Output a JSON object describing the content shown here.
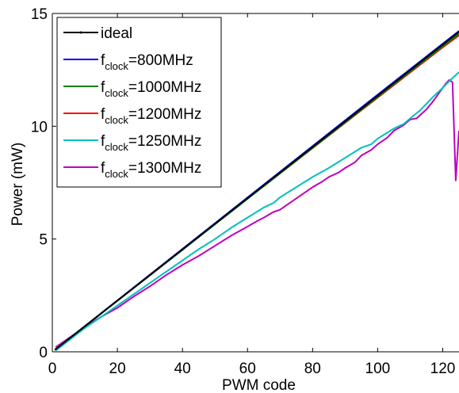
{
  "chart_data": {
    "type": "line",
    "xlabel": "PWM code",
    "ylabel": "Power (mW)",
    "xlim": [
      0,
      125
    ],
    "ylim": [
      0,
      15
    ],
    "xticks": [
      0,
      20,
      40,
      60,
      80,
      100,
      120
    ],
    "yticks": [
      0,
      5,
      10,
      15
    ],
    "grid": false,
    "legend_position": "top-left",
    "series": [
      {
        "name": "ideal",
        "legend_base": "ideal",
        "legend_sub": "",
        "legend_suffix": "",
        "color": "#000000",
        "markers": true,
        "x": [
          1,
          20,
          40,
          60,
          80,
          100,
          120,
          125
        ],
        "y": [
          0.11,
          2.27,
          4.54,
          6.81,
          9.08,
          11.35,
          13.62,
          14.19
        ]
      },
      {
        "name": "fclock=800MHz",
        "legend_base": "f",
        "legend_sub": "clock",
        "legend_suffix": "=800MHz",
        "color": "#0000ff",
        "markers": false,
        "x": [
          1,
          20,
          40,
          60,
          80,
          100,
          120,
          125
        ],
        "y": [
          0.11,
          2.28,
          4.56,
          6.84,
          9.12,
          11.4,
          13.66,
          14.22
        ]
      },
      {
        "name": "fclock=1000MHz",
        "legend_base": "f",
        "legend_sub": "clock",
        "legend_suffix": "=1000MHz",
        "color": "#008000",
        "markers": false,
        "x": [
          1,
          20,
          40,
          60,
          80,
          100,
          120,
          125
        ],
        "y": [
          0.11,
          2.26,
          4.52,
          6.78,
          9.04,
          11.3,
          13.55,
          14.1
        ]
      },
      {
        "name": "fclock=1200MHz",
        "legend_base": "f",
        "legend_sub": "clock",
        "legend_suffix": "=1200MHz",
        "color": "#ff0000",
        "markers": false,
        "x": [
          1,
          20,
          40,
          60,
          80,
          100,
          120,
          125
        ],
        "y": [
          0.11,
          2.27,
          4.53,
          6.79,
          9.03,
          11.27,
          13.5,
          14.03
        ]
      },
      {
        "name": "fclock=1250MHz",
        "legend_base": "f",
        "legend_sub": "clock",
        "legend_suffix": "=1250MHz",
        "color": "#00bfbf",
        "markers": false,
        "x": [
          1,
          5,
          10,
          15,
          20,
          25,
          30,
          35,
          40,
          45,
          50,
          55,
          60,
          65,
          68,
          70,
          75,
          80,
          85,
          90,
          95,
          98,
          100,
          105,
          108,
          110,
          113,
          115,
          117,
          120,
          122,
          125
        ],
        "y": [
          0.05,
          0.5,
          1.05,
          1.55,
          2.05,
          2.55,
          3.05,
          3.55,
          4.05,
          4.55,
          5.0,
          5.5,
          5.95,
          6.4,
          6.6,
          6.85,
          7.3,
          7.75,
          8.15,
          8.6,
          9.05,
          9.2,
          9.45,
          9.9,
          10.1,
          10.35,
          10.7,
          11.0,
          11.3,
          11.7,
          12.0,
          12.4
        ]
      },
      {
        "name": "fclock=1300MHz",
        "legend_base": "f",
        "legend_sub": "clock",
        "legend_suffix": "=1300MHz",
        "color": "#bf00bf",
        "markers": false,
        "x": [
          1,
          5,
          10,
          15,
          20,
          25,
          30,
          35,
          40,
          45,
          50,
          55,
          60,
          63,
          65,
          68,
          70,
          73,
          75,
          78,
          80,
          83,
          85,
          88,
          90,
          93,
          95,
          98,
          100,
          103,
          105,
          108,
          110,
          112,
          115,
          117,
          119,
          121,
          122,
          123,
          124,
          125
        ],
        "y": [
          0.2,
          0.6,
          1.1,
          1.55,
          1.95,
          2.45,
          2.9,
          3.4,
          3.85,
          4.25,
          4.7,
          5.15,
          5.55,
          5.8,
          5.95,
          6.2,
          6.3,
          6.6,
          6.8,
          7.1,
          7.3,
          7.55,
          7.75,
          7.95,
          8.15,
          8.4,
          8.7,
          8.95,
          9.2,
          9.5,
          9.8,
          10.05,
          10.3,
          10.35,
          10.75,
          11.1,
          11.5,
          11.9,
          12.05,
          11.95,
          7.6,
          9.8
        ]
      }
    ]
  }
}
